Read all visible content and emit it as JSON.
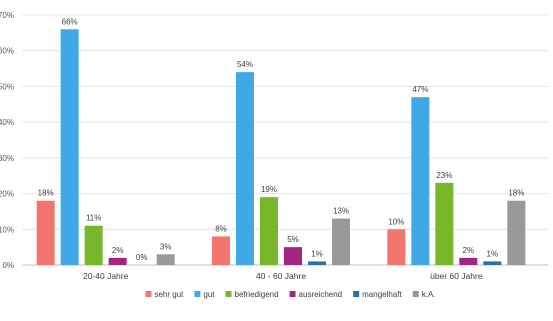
{
  "chart_data": {
    "type": "bar",
    "categories": [
      "20-40 Jahre",
      "40 - 60 Jahre",
      "über 60 Jahre"
    ],
    "series": [
      {
        "name": "sehr gut",
        "color": "#f4756d",
        "values": [
          18,
          8,
          10
        ],
        "labels": [
          "18%",
          "8%",
          "10%"
        ]
      },
      {
        "name": "gut",
        "color": "#3fa9e6",
        "values": [
          66,
          54,
          47
        ],
        "labels": [
          "66%",
          "54%",
          "47%"
        ]
      },
      {
        "name": "befriedigend",
        "color": "#76b82a",
        "values": [
          11,
          19,
          23
        ],
        "labels": [
          "11%",
          "19%",
          "23%"
        ]
      },
      {
        "name": "ausreichend",
        "color": "#a3257f",
        "values": [
          2,
          5,
          2
        ],
        "labels": [
          "2%",
          "5%",
          "2%"
        ]
      },
      {
        "name": "mangelhaft",
        "color": "#2b6fa8",
        "values": [
          0,
          1,
          1
        ],
        "labels": [
          "0%",
          "1%",
          "1%"
        ]
      },
      {
        "name": "k.A.",
        "color": "#999999",
        "values": [
          3,
          13,
          18
        ],
        "labels": [
          "3%",
          "13%",
          "18%"
        ]
      }
    ],
    "yticks": [
      "0%",
      "10%",
      "20%",
      "30%",
      "40%",
      "50%",
      "60%",
      "70%"
    ],
    "ylim": [
      0,
      70
    ],
    "ylabel": "",
    "xlabel": "",
    "title": "",
    "legend_position": "bottom",
    "grid": true
  }
}
